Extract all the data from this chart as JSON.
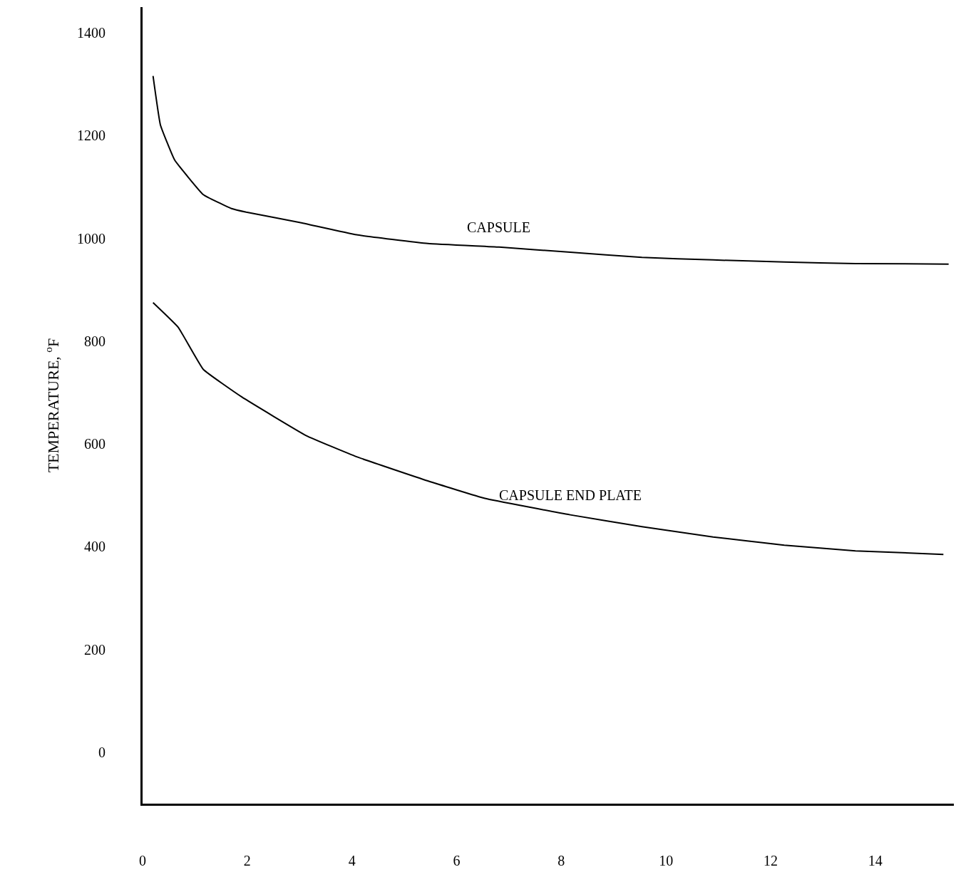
{
  "chart_data": {
    "type": "line",
    "ylabel": "TEMPERATURE, $^{o}$F",
    "xlim": [
      0,
      15.5
    ],
    "ylim": [
      -100,
      1450
    ],
    "xticks": [
      0,
      2,
      4,
      6,
      8,
      10,
      12,
      14
    ],
    "yticks": [
      0,
      200,
      400,
      600,
      800,
      1000,
      1200,
      1400
    ],
    "legend": false,
    "marker": "none",
    "line_style": "solid",
    "series": [
      {
        "name": "CAPSULE",
        "color": "#000000",
        "x": [
          0.2,
          0.34,
          0.61,
          1.16,
          1.7,
          1.98,
          3.0,
          4.09,
          5.45,
          6.81,
          8.17,
          9.54,
          10.9,
          12.26,
          13.62,
          15.4
        ],
        "values": [
          1316,
          1221,
          1153,
          1085,
          1058,
          1051,
          1031,
          1007,
          990,
          983,
          973,
          963,
          958,
          954,
          951,
          950
        ]
      },
      {
        "name": "CAPSULE END PLATE",
        "color": "#000000",
        "x": [
          0.2,
          0.68,
          1.16,
          1.9,
          3.13,
          4.09,
          5.45,
          6.54,
          8.17,
          9.54,
          10.9,
          12.26,
          13.62,
          15.3
        ],
        "values": [
          875,
          827,
          745,
          691,
          616,
          575,
          528,
          494,
          462,
          439,
          419,
          403,
          392,
          385
        ]
      }
    ]
  }
}
